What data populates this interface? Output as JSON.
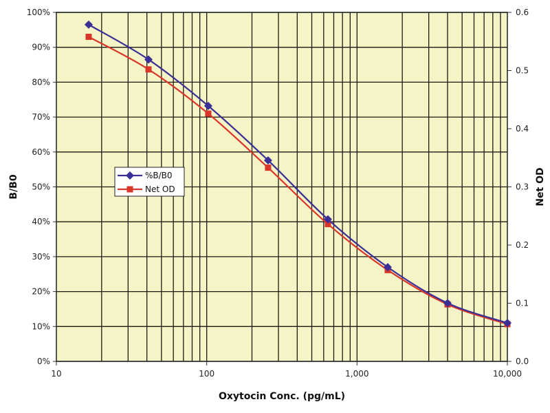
{
  "chart_data": {
    "type": "line",
    "title": "",
    "xlabel": "Oxytocin Conc. (pg/mL)",
    "ylabel": "B/B0",
    "y2label": "Net OD",
    "xscale": "log",
    "xlim": [
      10,
      10000
    ],
    "ylim": [
      0,
      100
    ],
    "y2lim": [
      0,
      0.6
    ],
    "grid": true,
    "legend_position": "center-left",
    "x_tick_labels": [
      "10",
      "100",
      "1,000",
      "10,000"
    ],
    "y_tick_labels": [
      "0%",
      "10%",
      "20%",
      "30%",
      "40%",
      "50%",
      "60%",
      "70%",
      "80%",
      "90%",
      "100%"
    ],
    "y2_tick_labels": [
      "0.0",
      "0.1",
      "0.2",
      "0.3",
      "0.4",
      "0.5",
      "0.6"
    ],
    "x": [
      16.4,
      41,
      102.4,
      256,
      640,
      1600,
      4000,
      10000
    ],
    "series": [
      {
        "name": "%B/B0",
        "axis": "left",
        "color": "#3a2f96",
        "marker": "diamond",
        "values": [
          96.5,
          86.5,
          73.2,
          57.6,
          40.7,
          27.0,
          16.7,
          11.0
        ]
      },
      {
        "name": "Net OD",
        "axis": "right",
        "color": "#d9362b",
        "marker": "square",
        "values": [
          0.558,
          0.502,
          0.426,
          0.333,
          0.236,
          0.157,
          0.098,
          0.064
        ]
      }
    ]
  }
}
